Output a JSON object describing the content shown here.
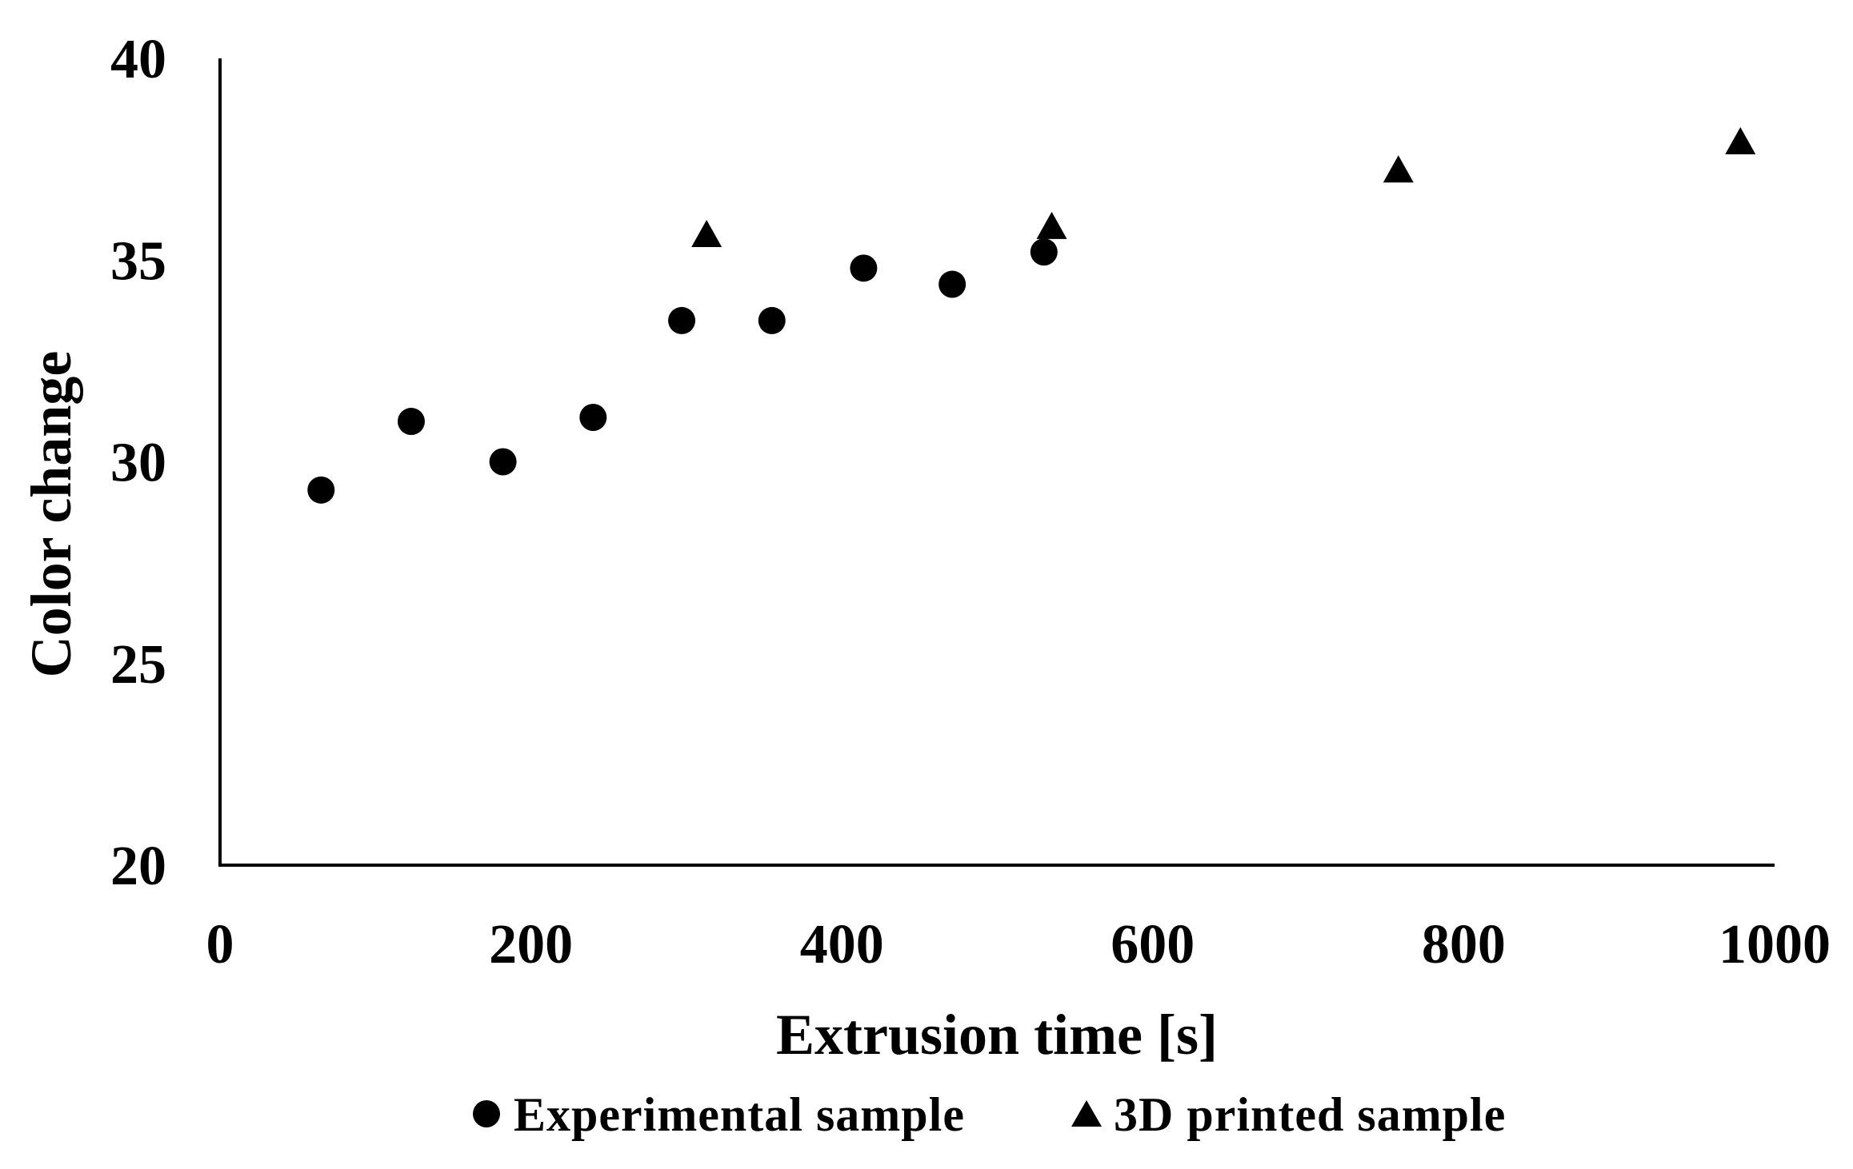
{
  "chart_data": {
    "type": "scatter",
    "title": "",
    "xlabel": "Extrusion time [s]",
    "ylabel": "Color change",
    "xlim": [
      0,
      1000
    ],
    "ylim": [
      20,
      40
    ],
    "x_ticks": [
      "0",
      "200",
      "400",
      "600",
      "800",
      "1000"
    ],
    "y_ticks": [
      "20",
      "25",
      "30",
      "35",
      "40"
    ],
    "grid": false,
    "legend_position": "bottom",
    "series": [
      {
        "name": "Experimental sample",
        "marker": "circle",
        "color": "#000000",
        "points": [
          {
            "x": 65,
            "y": 29.3
          },
          {
            "x": 123,
            "y": 31.0
          },
          {
            "x": 182,
            "y": 30.0
          },
          {
            "x": 240,
            "y": 31.1
          },
          {
            "x": 297,
            "y": 33.5
          },
          {
            "x": 355,
            "y": 33.5
          },
          {
            "x": 414,
            "y": 34.8
          },
          {
            "x": 471,
            "y": 34.4
          },
          {
            "x": 530,
            "y": 35.2
          }
        ]
      },
      {
        "name": "3D printed sample",
        "marker": "triangle",
        "color": "#000000",
        "points": [
          {
            "x": 313,
            "y": 35.6
          },
          {
            "x": 535,
            "y": 35.8
          },
          {
            "x": 758,
            "y": 37.2
          },
          {
            "x": 978,
            "y": 37.9
          }
        ]
      }
    ]
  }
}
